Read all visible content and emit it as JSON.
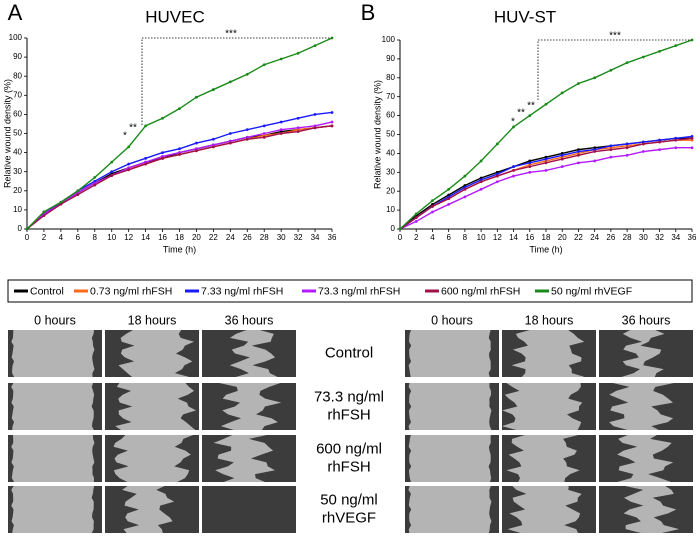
{
  "chart_data": [
    {
      "type": "line",
      "panel_label": "A",
      "title": "HUVEC",
      "x_label": "Time (h)",
      "y_label": "Relative wound density (%)",
      "x": [
        0,
        2,
        4,
        6,
        8,
        10,
        12,
        14,
        16,
        18,
        20,
        22,
        24,
        26,
        28,
        30,
        32,
        34,
        36
      ],
      "xlim": [
        0,
        36
      ],
      "xticks": [
        0,
        2,
        4,
        6,
        8,
        10,
        12,
        14,
        16,
        18,
        20,
        22,
        24,
        26,
        28,
        30,
        32,
        34,
        36
      ],
      "ylim": [
        0,
        100
      ],
      "yticks": [
        0,
        10,
        20,
        30,
        40,
        50,
        60,
        70,
        80,
        90,
        100
      ],
      "series": [
        {
          "name": "Control",
          "color": "#000000",
          "values": [
            0,
            8,
            13,
            19,
            24,
            29,
            32,
            35,
            37,
            40,
            42,
            44,
            46,
            48,
            49,
            51,
            52,
            53,
            54
          ]
        },
        {
          "name": "0.73 ng/ml rhFSH",
          "color": "#ff6a1a",
          "values": [
            0,
            8,
            13,
            19,
            24,
            28,
            32,
            34,
            37,
            39,
            41,
            43,
            45,
            47,
            49,
            50,
            52,
            53,
            54
          ]
        },
        {
          "name": "7.33 ng/ml rhFSH",
          "color": "#1a1aff",
          "values": [
            0,
            8,
            14,
            20,
            25,
            30,
            34,
            37,
            40,
            42,
            45,
            47,
            50,
            52,
            54,
            56,
            58,
            60,
            61
          ]
        },
        {
          "name": "73.3 ng/ml rhFSH",
          "color": "#b41aff",
          "values": [
            0,
            8,
            13,
            19,
            24,
            28,
            32,
            35,
            38,
            40,
            42,
            44,
            46,
            48,
            50,
            52,
            53,
            54,
            56
          ]
        },
        {
          "name": "600 ng/ml rhFSH",
          "color": "#a0104a",
          "values": [
            0,
            7,
            13,
            18,
            23,
            28,
            31,
            34,
            37,
            39,
            41,
            43,
            45,
            47,
            48,
            50,
            51,
            53,
            54
          ]
        },
        {
          "name": "50 ng/ml rhVEGF",
          "color": "#1a8a1a",
          "values": [
            0,
            9,
            14,
            20,
            27,
            35,
            43,
            54,
            58,
            63,
            69,
            73,
            77,
            81,
            86,
            89,
            92,
            96,
            100
          ]
        }
      ],
      "annotations": [
        "*",
        "**",
        "***"
      ]
    },
    {
      "type": "line",
      "panel_label": "B",
      "title": "HUV-ST",
      "x_label": "Time (h)",
      "y_label": "Relative wound density (%)",
      "x": [
        0,
        2,
        4,
        6,
        8,
        10,
        12,
        14,
        16,
        18,
        20,
        22,
        24,
        26,
        28,
        30,
        32,
        34,
        36
      ],
      "xlim": [
        0,
        36
      ],
      "xticks": [
        0,
        2,
        4,
        6,
        8,
        10,
        12,
        14,
        16,
        18,
        20,
        22,
        24,
        26,
        28,
        30,
        32,
        34,
        36
      ],
      "ylim": [
        0,
        100
      ],
      "yticks": [
        0,
        10,
        20,
        30,
        40,
        50,
        60,
        70,
        80,
        90,
        100
      ],
      "series": [
        {
          "color": "#000000",
          "values": [
            0,
            7,
            13,
            18,
            23,
            27,
            30,
            33,
            36,
            38,
            40,
            42,
            43,
            44,
            45,
            46,
            47,
            48,
            48
          ]
        },
        {
          "color": "#ff6a1a",
          "values": [
            0,
            6,
            12,
            16,
            21,
            25,
            28,
            31,
            34,
            36,
            38,
            40,
            42,
            43,
            44,
            45,
            46,
            47,
            47
          ]
        },
        {
          "color": "#1a1aff",
          "values": [
            0,
            6,
            12,
            17,
            22,
            26,
            29,
            33,
            35,
            37,
            39,
            41,
            42,
            44,
            45,
            46,
            47,
            48,
            49
          ]
        },
        {
          "color": "#b41aff",
          "values": [
            0,
            4,
            9,
            13,
            17,
            21,
            25,
            28,
            30,
            31,
            33,
            35,
            36,
            38,
            39,
            41,
            42,
            43,
            43
          ]
        },
        {
          "color": "#a0104a",
          "values": [
            0,
            6,
            12,
            16,
            21,
            25,
            28,
            31,
            33,
            35,
            37,
            39,
            41,
            42,
            43,
            45,
            46,
            47,
            48
          ]
        },
        {
          "color": "#1a8a1a",
          "values": [
            0,
            8,
            15,
            21,
            28,
            36,
            45,
            54,
            60,
            66,
            72,
            77,
            80,
            84,
            88,
            91,
            94,
            97,
            100
          ]
        }
      ],
      "annotations": [
        "*",
        "**",
        "**",
        "***"
      ]
    }
  ],
  "micrographs": {
    "time_points": [
      "0 hours",
      "18 hours",
      "36 hours"
    ],
    "conditions": [
      [
        "Control"
      ],
      [
        "73.3 ng/ml",
        "rhFSH"
      ],
      [
        "600 ng/ml",
        "rhFSH"
      ],
      [
        "50 ng/ml",
        "rhVEGF"
      ]
    ]
  }
}
